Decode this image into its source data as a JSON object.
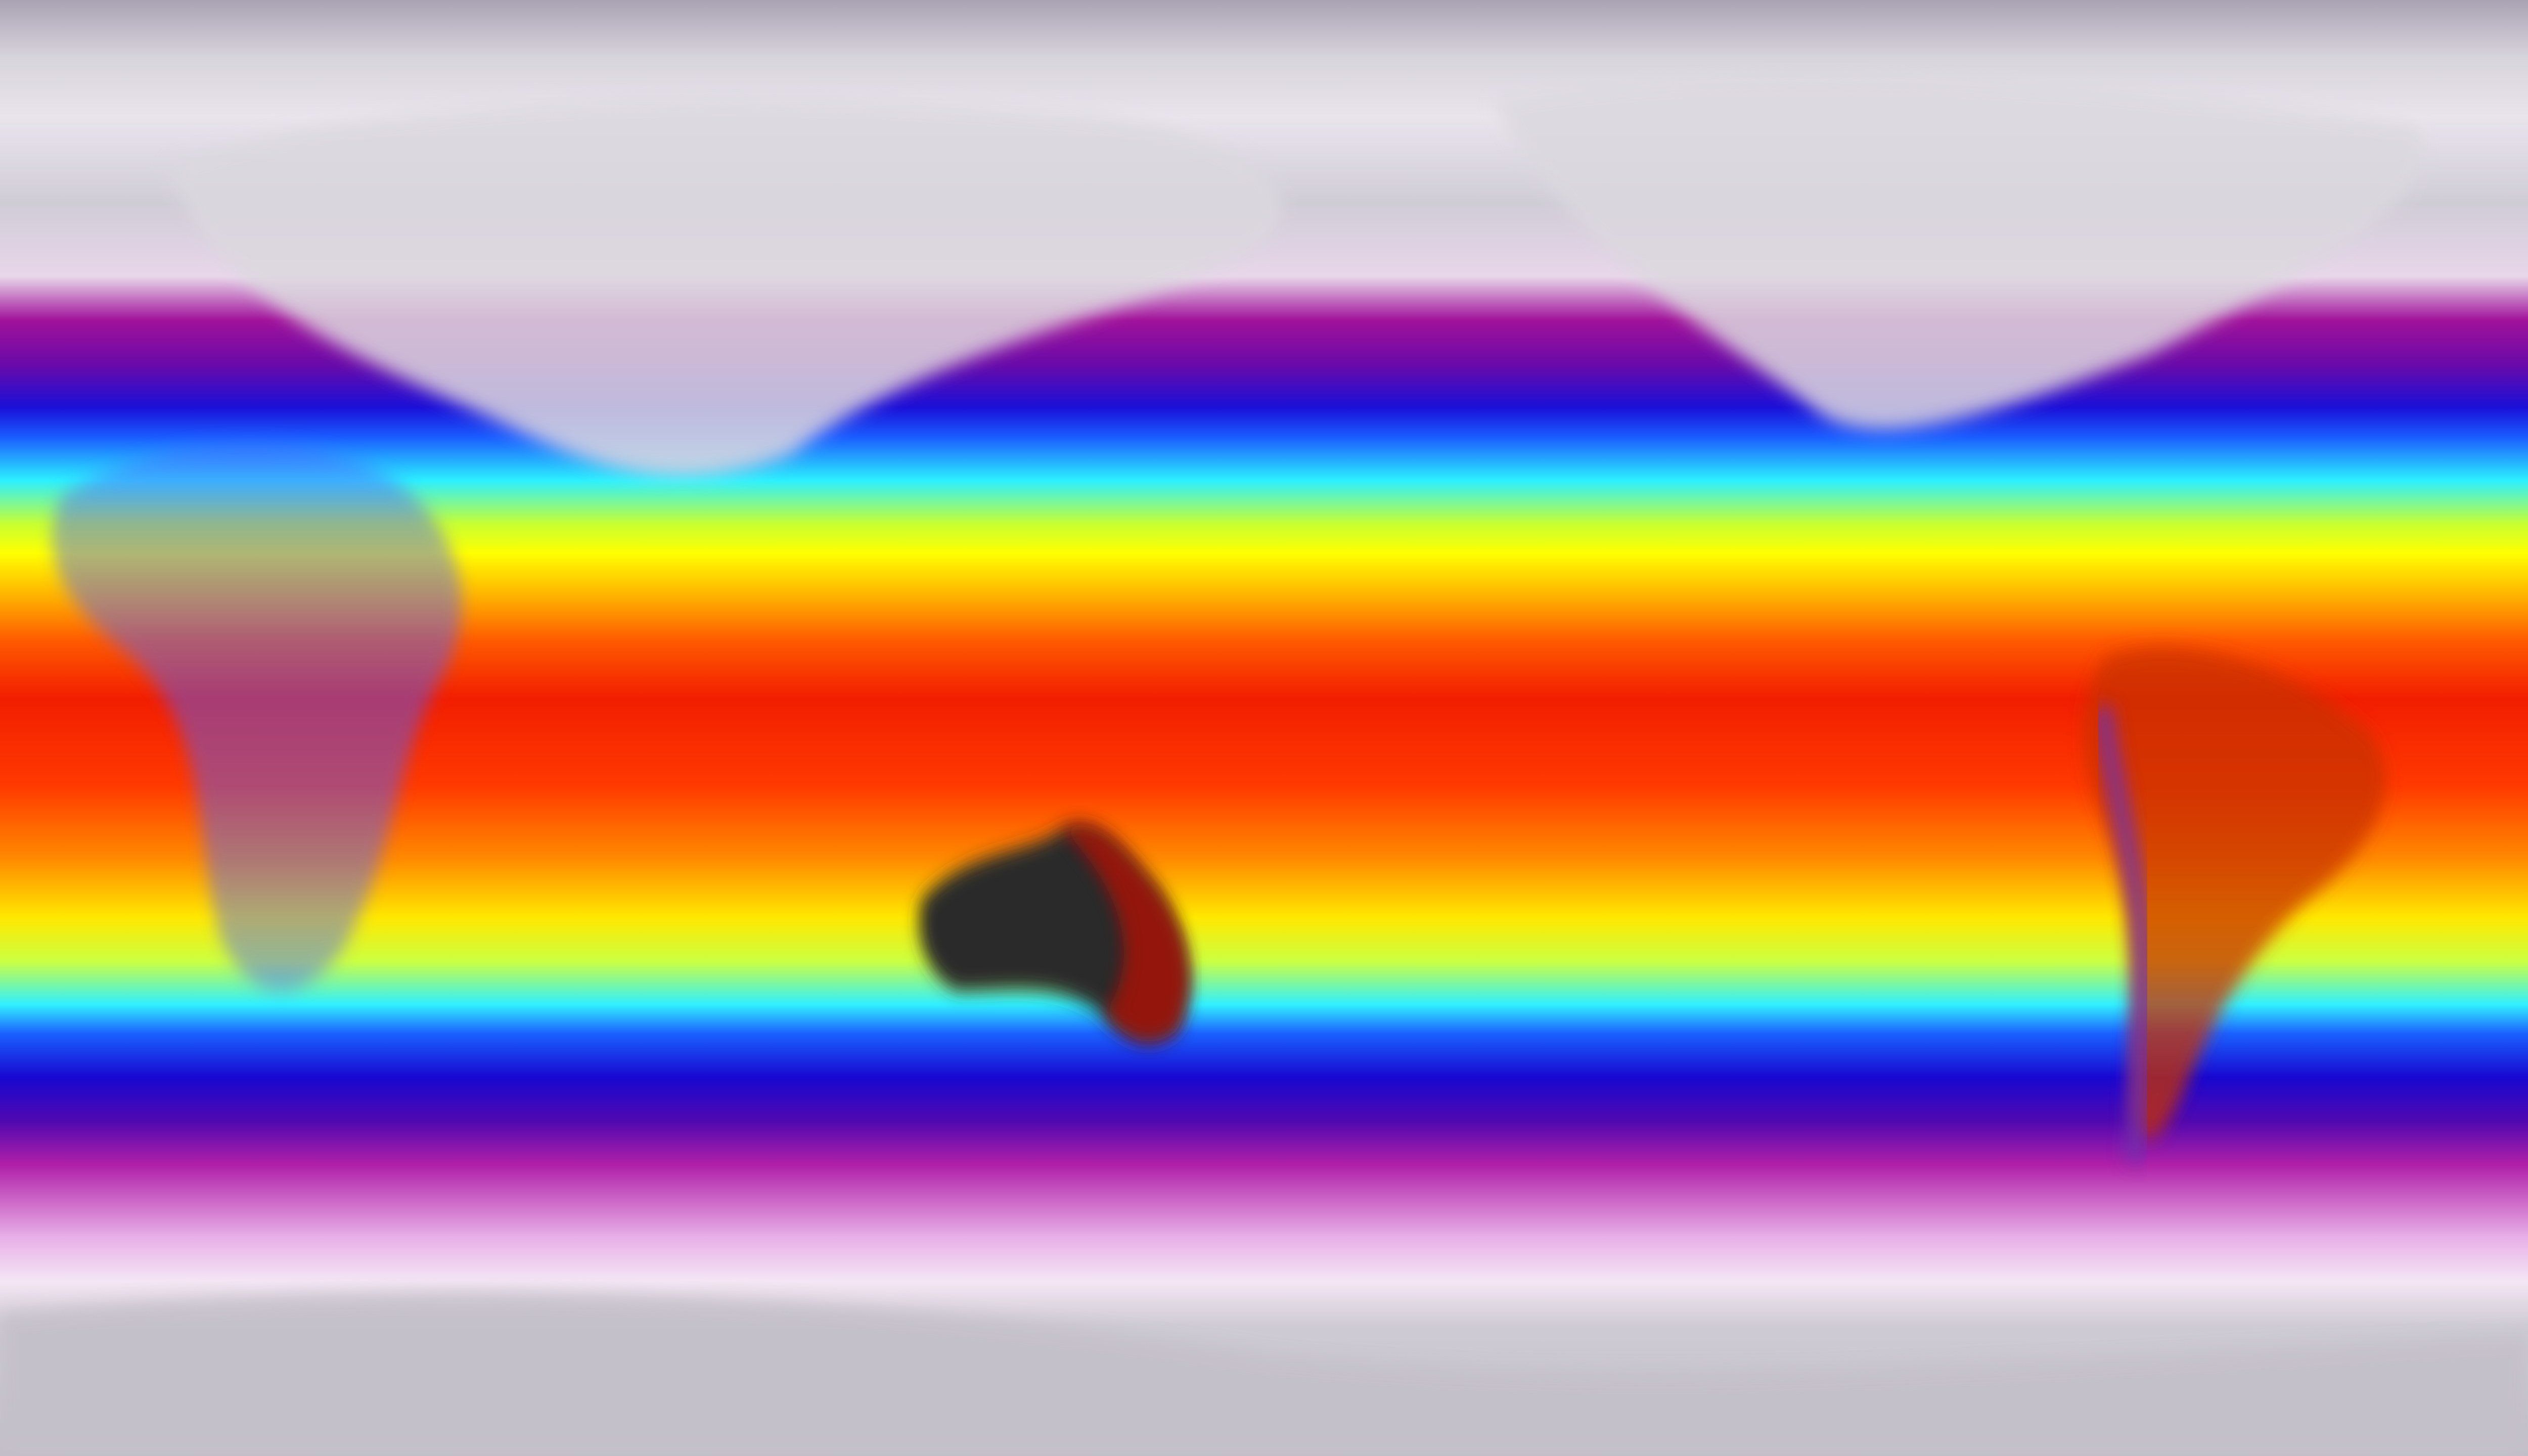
{
  "map": {
    "projection": "equirectangular",
    "colorscale": [
      "#c2bec8",
      "#f4e6f4",
      "#b020a8",
      "#1808d0",
      "#30f0ff",
      "#ffff00",
      "#ff8a00",
      "#f21e00",
      "#202020"
    ],
    "land_colors": {
      "cold": "#d6d2da",
      "hot_desert": "#2a2a2a",
      "tropical_land": "#d83000"
    }
  }
}
